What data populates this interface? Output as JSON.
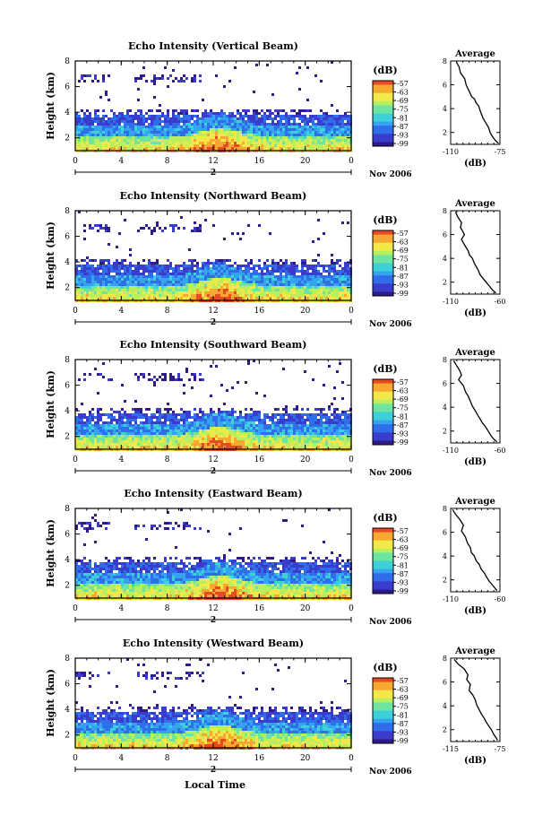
{
  "figure": {
    "xlabel": "Local Time",
    "date_label": "Nov 2006",
    "colorbar_unit": "(dB)",
    "colorbar_ticks": [
      "-57",
      "-63",
      "-69",
      "-75",
      "-81",
      "-87",
      "-93",
      "-99"
    ],
    "colorscale": [
      "#2f1a8a",
      "#3a3ccd",
      "#2f6ee8",
      "#35a3ef",
      "#3ed0d8",
      "#6fe3a0",
      "#b8ef5f",
      "#f2e84a",
      "#f7a830",
      "#e84a25"
    ]
  },
  "chart_data": [
    {
      "type": "heatmap",
      "title": "Echo Intensity (Vertical Beam)",
      "ylabel": "Height (km)",
      "x_ticks": [
        "0",
        "4",
        "8",
        "12",
        "16",
        "20",
        "0"
      ],
      "x_sub_label": "2",
      "y_ticks": [
        "2",
        "4",
        "6",
        "8"
      ],
      "xlim": [
        0,
        24
      ],
      "ylim": [
        1,
        8
      ],
      "colorbar_range_db": [
        -99,
        -57
      ],
      "profile": {
        "title": "Average",
        "xlabel": "(dB)",
        "x_ticks": [
          "-110",
          "-75"
        ],
        "xlim": [
          -110,
          -75
        ],
        "y_ticks": [
          "2",
          "4",
          "6",
          "8"
        ],
        "x": [
          -106,
          -104,
          -103,
          -100,
          -99,
          -97,
          -95,
          -93,
          -92,
          -90,
          -89,
          -88,
          -87,
          -85,
          -83,
          -82,
          -80,
          -78,
          -76
        ],
        "y": [
          7.9,
          7.5,
          7.0,
          6.5,
          6.0,
          5.5,
          5.0,
          4.8,
          4.5,
          4.2,
          3.8,
          3.5,
          3.2,
          2.8,
          2.4,
          2.0,
          1.6,
          1.3,
          1.1
        ]
      }
    },
    {
      "type": "heatmap",
      "title": "Echo Intensity (Northward Beam)",
      "ylabel": "Height (km)",
      "x_ticks": [
        "0",
        "4",
        "8",
        "12",
        "16",
        "20",
        "0"
      ],
      "x_sub_label": "2",
      "y_ticks": [
        "2",
        "4",
        "6",
        "8"
      ],
      "xlim": [
        0,
        24
      ],
      "ylim": [
        1,
        8
      ],
      "colorbar_range_db": [
        -99,
        -57
      ],
      "profile": {
        "title": "Average",
        "xlabel": "(dB)",
        "x_ticks": [
          "-110",
          "-60"
        ],
        "xlim": [
          -110,
          -60
        ],
        "y_ticks": [
          "2",
          "4",
          "6",
          "8"
        ],
        "x": [
          -105,
          -103,
          -99,
          -100,
          -96,
          -99,
          -95,
          -92,
          -91,
          -88,
          -86,
          -84,
          -82,
          -80,
          -77,
          -74,
          -70,
          -67,
          -64
        ],
        "y": [
          7.9,
          7.5,
          7.0,
          6.6,
          6.0,
          5.6,
          5.0,
          4.6,
          4.3,
          4.0,
          3.6,
          3.3,
          3.0,
          2.6,
          2.3,
          2.0,
          1.6,
          1.3,
          1.1
        ]
      }
    },
    {
      "type": "heatmap",
      "title": "Echo Intensity (Southward Beam)",
      "ylabel": "Height (km)",
      "x_ticks": [
        "0",
        "4",
        "8",
        "12",
        "16",
        "20",
        "0"
      ],
      "x_sub_label": "2",
      "y_ticks": [
        "2",
        "4",
        "6",
        "8"
      ],
      "xlim": [
        0,
        24
      ],
      "ylim": [
        1,
        8
      ],
      "colorbar_range_db": [
        -99,
        -57
      ],
      "profile": {
        "title": "Average",
        "xlabel": "(dB)",
        "x_ticks": [
          "-110",
          "-60"
        ],
        "xlim": [
          -110,
          -60
        ],
        "y_ticks": [
          "2",
          "4",
          "6",
          "8"
        ],
        "x": [
          -107,
          -104,
          -101,
          -99,
          -102,
          -97,
          -95,
          -92,
          -90,
          -88,
          -85,
          -83,
          -80,
          -78,
          -75,
          -72,
          -69,
          -66,
          -63
        ],
        "y": [
          7.9,
          7.5,
          7.1,
          6.7,
          6.3,
          5.8,
          5.3,
          4.9,
          4.5,
          4.1,
          3.7,
          3.4,
          3.0,
          2.7,
          2.4,
          2.0,
          1.6,
          1.3,
          1.1
        ]
      }
    },
    {
      "type": "heatmap",
      "title": "Echo Intensity (Eastward Beam)",
      "ylabel": "Height (km)",
      "x_ticks": [
        "0",
        "4",
        "8",
        "12",
        "16",
        "20",
        "0"
      ],
      "x_sub_label": "2",
      "y_ticks": [
        "2",
        "4",
        "6",
        "8"
      ],
      "xlim": [
        0,
        24
      ],
      "ylim": [
        1,
        8
      ],
      "colorbar_range_db": [
        -99,
        -57
      ],
      "profile": {
        "title": "Average",
        "xlabel": "(dB)",
        "x_ticks": [
          "-110",
          "-60"
        ],
        "xlim": [
          -110,
          -60
        ],
        "y_ticks": [
          "2",
          "4",
          "6",
          "8"
        ],
        "x": [
          -108,
          -105,
          -101,
          -97,
          -99,
          -95,
          -93,
          -90,
          -89,
          -86,
          -84,
          -81,
          -79,
          -76,
          -74,
          -71,
          -68,
          -65,
          -63
        ],
        "y": [
          7.9,
          7.5,
          7.1,
          6.6,
          6.1,
          5.6,
          5.1,
          4.7,
          4.3,
          4.0,
          3.6,
          3.3,
          2.9,
          2.6,
          2.3,
          1.9,
          1.6,
          1.3,
          1.1
        ]
      }
    },
    {
      "type": "heatmap",
      "title": "Echo Intensity (Westward Beam)",
      "ylabel": "Height (km)",
      "x_ticks": [
        "0",
        "4",
        "8",
        "12",
        "16",
        "20",
        "0"
      ],
      "x_sub_label": "2",
      "y_ticks": [
        "2",
        "4",
        "6",
        "8"
      ],
      "xlim": [
        0,
        24
      ],
      "ylim": [
        1,
        8
      ],
      "colorbar_range_db": [
        -99,
        -57
      ],
      "profile": {
        "title": "Average",
        "xlabel": "(dB)",
        "x_ticks": [
          "-115",
          "-75"
        ],
        "xlim": [
          -115,
          -75
        ],
        "y_ticks": [
          "2",
          "4",
          "6",
          "8"
        ],
        "x": [
          -112,
          -109,
          -104,
          -101,
          -102,
          -99,
          -100,
          -97,
          -95,
          -94,
          -92,
          -90,
          -88,
          -86,
          -84,
          -82,
          -80,
          -78,
          -77
        ],
        "y": [
          7.9,
          7.5,
          7.1,
          6.6,
          6.2,
          5.8,
          5.3,
          4.9,
          4.5,
          4.1,
          3.7,
          3.3,
          3.0,
          2.6,
          2.3,
          2.0,
          1.6,
          1.3,
          1.1
        ]
      }
    }
  ]
}
